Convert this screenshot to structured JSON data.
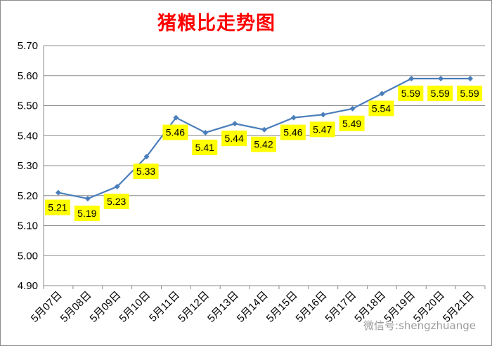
{
  "chart_data": {
    "type": "line",
    "title": "猪粮比走势图",
    "categories": [
      "5月07日",
      "5月08日",
      "5月09日",
      "5月10日",
      "5月11日",
      "5月12日",
      "5月13日",
      "5月14日",
      "5月15日",
      "5月16日",
      "5月17日",
      "5月18日",
      "5月19日",
      "5月20日",
      "5月21日"
    ],
    "series": [
      {
        "values": [
          5.21,
          5.19,
          5.23,
          5.33,
          5.46,
          5.41,
          5.44,
          5.42,
          5.46,
          5.47,
          5.49,
          5.54,
          5.59,
          5.59,
          5.59
        ]
      }
    ],
    "data_labels": [
      "5.21",
      "5.19",
      "5.23",
      "5.33",
      "5.46",
      "5.41",
      "5.44",
      "5.42",
      "5.46",
      "5.47",
      "5.49",
      "5.54",
      "5.59",
      "5.59",
      "5.59"
    ],
    "y_ticks": [
      "4.90",
      "5.00",
      "5.10",
      "5.20",
      "5.30",
      "5.40",
      "5.50",
      "5.60",
      "5.70"
    ],
    "ylim": [
      4.9,
      5.7
    ],
    "xlabel": "",
    "ylabel": "",
    "grid": true,
    "legend": "none",
    "colors": {
      "line": "#4a7ebb",
      "marker": "#4a7ebb",
      "label_bg": "#ffff00",
      "title": "#ff0000",
      "grid": "#8c8c8c"
    }
  },
  "watermark": "微信号:shengzhuange"
}
